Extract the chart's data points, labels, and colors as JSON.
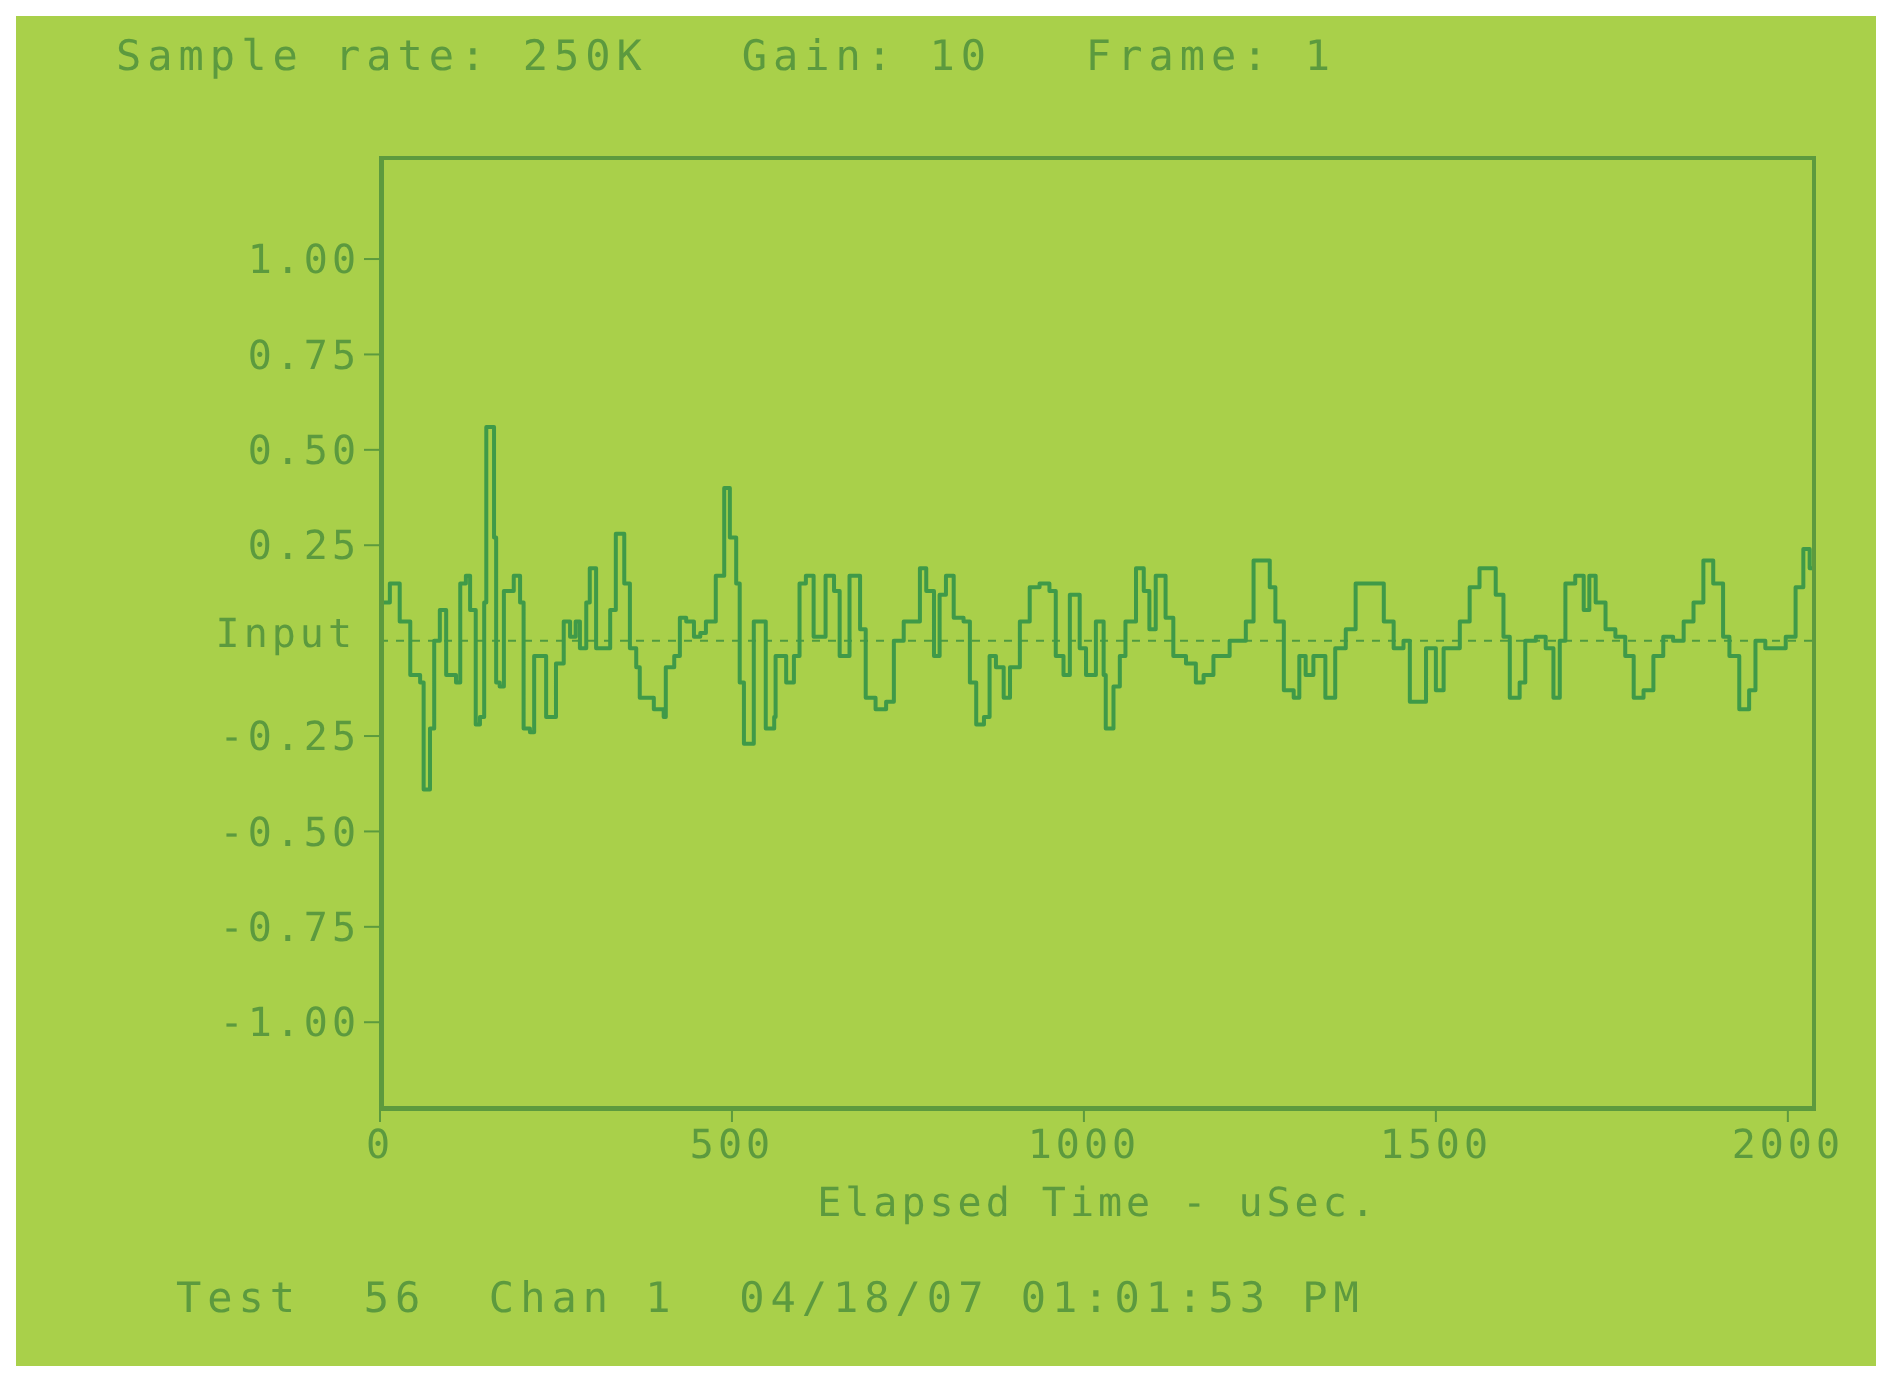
{
  "chart_data": {
    "type": "step",
    "title": "Sample rate: 250K   Gain: 10   Frame: 1",
    "xlabel": "Elapsed Time - uSec.",
    "ylabel": "Input",
    "annotations": [
      "Test  56  Chan 1  04/18/07 01:01:53 PM"
    ],
    "xlim": [
      0,
      2040
    ],
    "ylim": [
      -1.23,
      1.27
    ],
    "xticks": [
      0,
      500,
      1000,
      1500,
      2000
    ],
    "yticks": [
      {
        "value": 1,
        "label": "1.00"
      },
      {
        "value": 0.75,
        "label": "0.75"
      },
      {
        "value": 0.5,
        "label": "0.50"
      },
      {
        "value": 0.25,
        "label": "0.25"
      },
      {
        "value": -0.25,
        "label": "-0.25"
      },
      {
        "value": -0.5,
        "label": "-0.50"
      },
      {
        "value": -0.75,
        "label": "-0.75"
      },
      {
        "value": -1,
        "label": "-1.00"
      }
    ],
    "ref_lines": [
      {
        "axis": "y",
        "value": 0,
        "label": null,
        "color": "#4f9a40",
        "line_style": "dashed"
      }
    ],
    "marker": "none",
    "line_style": "solid",
    "series": [
      {
        "color": "#3f9a48",
        "x": [
          0,
          14,
          28,
          43,
          57,
          62,
          71,
          77,
          85,
          94,
          108,
          114,
          122,
          128,
          136,
          142,
          148,
          151,
          162,
          165,
          170,
          176,
          190,
          199,
          204,
          213,
          219,
          236,
          250,
          261,
          270,
          278,
          284,
          293,
          298,
          307,
          327,
          335,
          347,
          355,
          364,
          369,
          389,
          403,
          406,
          418,
          426,
          435,
          446,
          455,
          463,
          477,
          489,
          497,
          506,
          511,
          517,
          526,
          531,
          548,
          560,
          562,
          577,
          588,
          596,
          605,
          616,
          633,
          645,
          653,
          667,
          682,
          690,
          704,
          719,
          730,
          744,
          767,
          776,
          787,
          795,
          804,
          815,
          829,
          838,
          847,
          858,
          866,
          875,
          886,
          895,
          909,
          923,
          937,
          951,
          960,
          971,
          980,
          994,
          1003,
          1017,
          1028,
          1031,
          1042,
          1051,
          1059,
          1074,
          1085,
          1093,
          1102,
          1116,
          1127,
          1145,
          1159,
          1170,
          1184,
          1198,
          1207,
          1230,
          1241,
          1255,
          1264,
          1272,
          1284,
          1298,
          1306,
          1315,
          1326,
          1343,
          1357,
          1372,
          1386,
          1414,
          1426,
          1440,
          1454,
          1463,
          1477,
          1486,
          1500,
          1511,
          1525,
          1534,
          1548,
          1562,
          1576,
          1585,
          1596,
          1605,
          1619,
          1627,
          1642,
          1656,
          1667,
          1676,
          1684,
          1698,
          1710,
          1718,
          1727,
          1741,
          1755,
          1769,
          1781,
          1795,
          1809,
          1823,
          1837,
          1852,
          1866,
          1880,
          1894,
          1908,
          1917,
          1931,
          1945,
          1954,
          1968,
          1988,
          1997,
          2011,
          2022,
          2031,
          2040
        ],
        "values": [
          0.1,
          0.15,
          0.05,
          -0.09,
          -0.11,
          -0.39,
          -0.23,
          0.0,
          0.08,
          -0.09,
          -0.11,
          0.15,
          0.17,
          0.08,
          -0.22,
          -0.2,
          0.1,
          0.56,
          0.27,
          -0.11,
          -0.12,
          0.13,
          0.17,
          0.1,
          -0.23,
          -0.24,
          -0.04,
          -0.2,
          -0.06,
          0.05,
          0.01,
          0.05,
          -0.02,
          0.1,
          0.19,
          -0.02,
          0.08,
          0.28,
          0.15,
          -0.02,
          -0.07,
          -0.15,
          -0.18,
          -0.2,
          -0.07,
          -0.04,
          0.06,
          0.05,
          0.01,
          0.02,
          0.05,
          0.17,
          0.4,
          0.27,
          0.15,
          -0.11,
          -0.27,
          -0.27,
          0.05,
          -0.23,
          -0.2,
          -0.04,
          -0.11,
          -0.04,
          0.15,
          0.17,
          0.01,
          0.17,
          0.13,
          -0.04,
          0.17,
          0.03,
          -0.15,
          -0.18,
          -0.16,
          0.0,
          0.05,
          0.19,
          0.13,
          -0.04,
          0.12,
          0.17,
          0.06,
          0.05,
          -0.11,
          -0.22,
          -0.2,
          -0.04,
          -0.07,
          -0.15,
          -0.07,
          0.05,
          0.14,
          0.15,
          0.13,
          -0.04,
          -0.09,
          0.12,
          -0.02,
          -0.09,
          0.05,
          -0.09,
          -0.23,
          -0.12,
          -0.04,
          0.05,
          0.19,
          0.13,
          0.03,
          0.17,
          0.06,
          -0.04,
          -0.06,
          -0.11,
          -0.09,
          -0.04,
          -0.04,
          0.0,
          0.05,
          0.21,
          0.21,
          0.14,
          0.05,
          -0.13,
          -0.15,
          -0.04,
          -0.09,
          -0.04,
          -0.15,
          -0.02,
          0.03,
          0.15,
          0.15,
          0.05,
          -0.02,
          0.0,
          -0.16,
          -0.16,
          -0.02,
          -0.13,
          -0.02,
          -0.02,
          0.05,
          0.14,
          0.19,
          0.19,
          0.12,
          0.01,
          -0.15,
          -0.11,
          0.0,
          0.01,
          -0.02,
          -0.15,
          0.0,
          0.15,
          0.17,
          0.08,
          0.17,
          0.1,
          0.03,
          0.01,
          -0.04,
          -0.15,
          -0.13,
          -0.04,
          0.01,
          0.0,
          0.05,
          0.1,
          0.21,
          0.15,
          0.01,
          -0.04,
          -0.18,
          -0.13,
          0.0,
          -0.02,
          -0.02,
          0.01,
          0.14,
          0.24,
          0.19,
          0.01
        ]
      }
    ]
  }
}
